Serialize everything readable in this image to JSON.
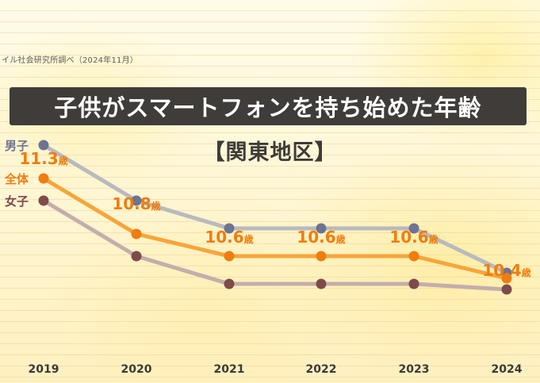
{
  "source": "イル社会研究所調べ（2024年11月）",
  "title": "子供がスマートフォンを持ち始めた年齢",
  "subtitle": "【関東地区】",
  "chart_data": {
    "type": "line",
    "categories": [
      "2019",
      "2020",
      "2021",
      "2022",
      "2023",
      "2024"
    ],
    "series": [
      {
        "name": "男子",
        "color": "#6d7491",
        "line_color": "#b8babd",
        "values": [
          11.6,
          11.1,
          10.85,
          10.85,
          10.85,
          10.45
        ]
      },
      {
        "name": "全体",
        "color": "#f07d10",
        "line_color": "#f7a53a",
        "values": [
          11.3,
          10.8,
          10.6,
          10.6,
          10.6,
          10.4
        ]
      },
      {
        "name": "女子",
        "color": "#7e4a4a",
        "line_color": "#c4aeac",
        "values": [
          11.1,
          10.6,
          10.35,
          10.35,
          10.35,
          10.3
        ]
      }
    ],
    "data_labels": [
      "11.3歳",
      "10.8歳",
      "10.6歳",
      "10.6歳",
      "10.6歳",
      "10.4歳"
    ]
  }
}
